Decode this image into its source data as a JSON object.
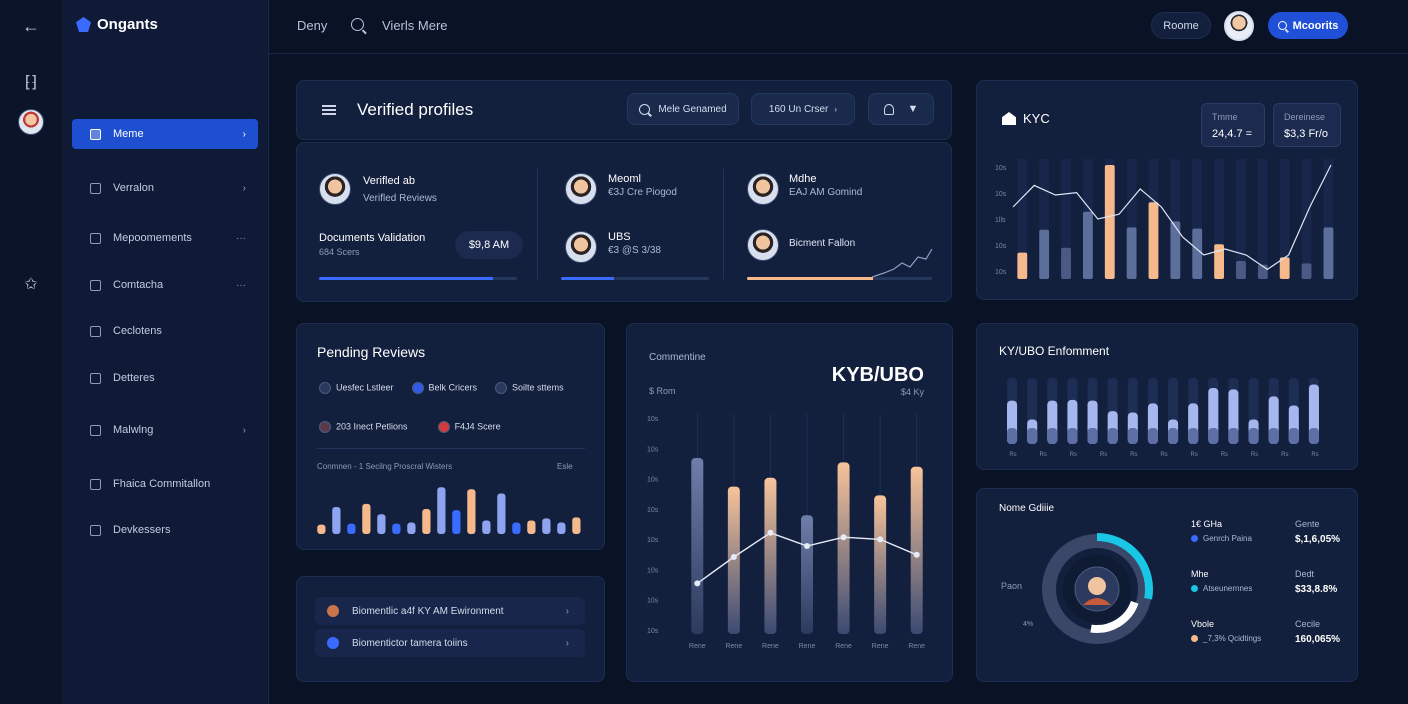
{
  "header": {
    "brand": "Ongants",
    "links": [
      "Deny",
      "Vierls Mere"
    ],
    "route_pill": "Roome",
    "primary_button": "Mcoorits"
  },
  "rail": {
    "icons": [
      "back-arrow-icon",
      "hook-icon",
      "avatar",
      "star-icon"
    ]
  },
  "sidebar": {
    "items": [
      {
        "label": "Meme",
        "tail": "›",
        "active": true
      },
      {
        "label": "Verralon",
        "tail": "›"
      },
      {
        "label": "Mepoomements",
        "tail": "···"
      },
      {
        "label": "Comtacha",
        "tail": "···"
      },
      {
        "label": "Ceclotens",
        "tail": ""
      },
      {
        "label": "Detteres",
        "tail": ""
      },
      {
        "label": "Malwlng",
        "tail": "›"
      },
      {
        "label": "Fhaica Commitallon",
        "tail": ""
      },
      {
        "label": "Devkessers",
        "tail": ""
      }
    ]
  },
  "verified": {
    "title": "Verified profiles",
    "search_label": "Mele Genamed",
    "filter_label": "160 Un Crser",
    "col1": {
      "name": "Verifled ab",
      "sub": "Verifled Reviews",
      "doc_title": "Documents Validation",
      "doc_sub": "684 Scers",
      "badge": "$9,8 AM",
      "progress": 0.88
    },
    "col2": [
      {
        "name": "Meoml",
        "sub": "€3J Cre Piogod"
      },
      {
        "name": "UBS",
        "sub": "€3 @S 3/38"
      }
    ],
    "col2_progress": 0.36,
    "col3": [
      {
        "name": "Mdhe",
        "sub": "EAJ AM Gomind"
      },
      {
        "name": "Bicment Fallon",
        "sub": ""
      }
    ],
    "col3_progress": 0.68
  },
  "kyc": {
    "title": "KYC",
    "stats": [
      {
        "label": "Tmme",
        "value": "24,4.7 ="
      },
      {
        "label": "Dereinese",
        "value": "$3,3 Fr/o"
      }
    ],
    "y_ticks": [
      "10s",
      "10s",
      "1lls",
      "10s",
      "10s"
    ],
    "bars": [
      {
        "v": 0.22,
        "c": "#f5b98c"
      },
      {
        "v": 0.41,
        "c": "#5c6e9a"
      },
      {
        "v": 0.26,
        "c": "#4a5a84"
      },
      {
        "v": 0.56,
        "c": "#5c6e9a"
      },
      {
        "v": 0.95,
        "c": "#f5b98c"
      },
      {
        "v": 0.43,
        "c": "#5c6e9a"
      },
      {
        "v": 0.64,
        "c": "#f5b98c"
      },
      {
        "v": 0.48,
        "c": "#5c6e9a"
      },
      {
        "v": 0.42,
        "c": "#5c6e9a"
      },
      {
        "v": 0.29,
        "c": "#f5b98c"
      },
      {
        "v": 0.15,
        "c": "#4a5a84"
      },
      {
        "v": 0.12,
        "c": "#4a5a84"
      },
      {
        "v": 0.18,
        "c": "#f5b98c"
      },
      {
        "v": 0.13,
        "c": "#4a5a84"
      },
      {
        "v": 0.43,
        "c": "#5c6e9a"
      }
    ],
    "line": [
      0.6,
      0.78,
      0.7,
      0.72,
      0.5,
      0.54,
      0.75,
      0.6,
      0.35,
      0.2,
      0.25,
      0.2,
      0.08,
      0.2,
      0.6,
      0.95
    ]
  },
  "pending": {
    "title": "Pending Reviews",
    "chips": [
      {
        "label": "Uesfec Lstleer",
        "color": "#2a3a5e"
      },
      {
        "label": "Belk Cricers",
        "color": "#2f5be8"
      },
      {
        "label": "Soilte sttems",
        "color": "#2a3a5e"
      }
    ],
    "chips2": [
      {
        "label": "203 Inect Petlions",
        "color": "#5b3b4a"
      },
      {
        "label": "F4J4 Scere",
        "color": "#d23c3c"
      }
    ],
    "chart_caption": "Conmnen -   1  Secilng Proscral Wisters",
    "chart_caption_right": "Esle",
    "bars": [
      {
        "v": 0.18,
        "c": "#f5b98c"
      },
      {
        "v": 0.52,
        "c": "#8fa4f0"
      },
      {
        "v": 0.2,
        "c": "#3a6bff"
      },
      {
        "v": 0.58,
        "c": "#f5b98c"
      },
      {
        "v": 0.38,
        "c": "#8fa4f0"
      },
      {
        "v": 0.2,
        "c": "#3a6bff"
      },
      {
        "v": 0.22,
        "c": "#8fa4f0"
      },
      {
        "v": 0.48,
        "c": "#f5b98c"
      },
      {
        "v": 0.9,
        "c": "#8fa4f0"
      },
      {
        "v": 0.46,
        "c": "#3a6bff"
      },
      {
        "v": 0.86,
        "c": "#f5b98c"
      },
      {
        "v": 0.26,
        "c": "#8fa4f0"
      },
      {
        "v": 0.78,
        "c": "#8fa4f0"
      },
      {
        "v": 0.22,
        "c": "#3a6bff"
      },
      {
        "v": 0.26,
        "c": "#f5b98c"
      },
      {
        "v": 0.3,
        "c": "#8fa4f0"
      },
      {
        "v": 0.22,
        "c": "#8fa4f0"
      },
      {
        "v": 0.32,
        "c": "#f5b98c"
      }
    ]
  },
  "biometric": {
    "rows": [
      {
        "label": "Biomentlic a4f KY AM Ewironment",
        "icon_color": "#c9744a"
      },
      {
        "label": "Biomentictor tamera toiins",
        "icon_color": "#3a6bff"
      }
    ]
  },
  "kyb": {
    "caption": "Commentine",
    "sub_caption": "$ Rom",
    "title": "KYB/UBO",
    "sub": "$4 Ky",
    "y_ticks": [
      "10s",
      "10s",
      "10s",
      "10s",
      "10s",
      "10s",
      "10s",
      "10s"
    ],
    "x_ticks": [
      "Rene",
      "Rene",
      "Rene",
      "Rene",
      "Rene",
      "Rene",
      "Rene"
    ],
    "bars": [
      {
        "v": 0.8,
        "c": "blue"
      },
      {
        "v": 0.67,
        "c": "orange"
      },
      {
        "v": 0.71,
        "c": "orange"
      },
      {
        "v": 0.54,
        "c": "blue"
      },
      {
        "v": 0.78,
        "c": "orange"
      },
      {
        "v": 0.63,
        "c": "orange"
      },
      {
        "v": 0.76,
        "c": "orange"
      }
    ],
    "line": [
      0.23,
      0.35,
      0.46,
      0.4,
      0.44,
      0.43,
      0.36
    ]
  },
  "enforcement": {
    "title": "KY/UBO Enfomment",
    "bars": [
      0.62,
      0.35,
      0.62,
      0.63,
      0.62,
      0.47,
      0.45,
      0.58,
      0.35,
      0.58,
      0.8,
      0.78,
      0.35,
      0.68,
      0.55,
      0.85
    ],
    "x_ticks": [
      "Rs",
      "Rs",
      "Rs",
      "Rs",
      "Rs",
      "Rs",
      "Rs",
      "Rs",
      "Rs",
      "Rs",
      "Rs"
    ]
  },
  "donut": {
    "title": "Nome Gdiiie",
    "left_labels": [
      "Paon",
      "4%"
    ],
    "fraction_cyan": 0.28,
    "fraction_white": 0.22,
    "stats": [
      {
        "head": "1€ GHa",
        "label": "Genrch Paina",
        "right_head": "Gente",
        "value": "$,1,6,05%",
        "dot": "#3a6bff"
      },
      {
        "head": "Mhe",
        "label": "Atseunernnes",
        "right_head": "Dedt",
        "value": "$33,8.8%",
        "dot": "#19c6e6"
      },
      {
        "head": "Vbole",
        "label": "_7,3% Qcidtings",
        "right_head": "Cecile",
        "value": "160,065%",
        "dot": "#f5b98c"
      }
    ]
  }
}
